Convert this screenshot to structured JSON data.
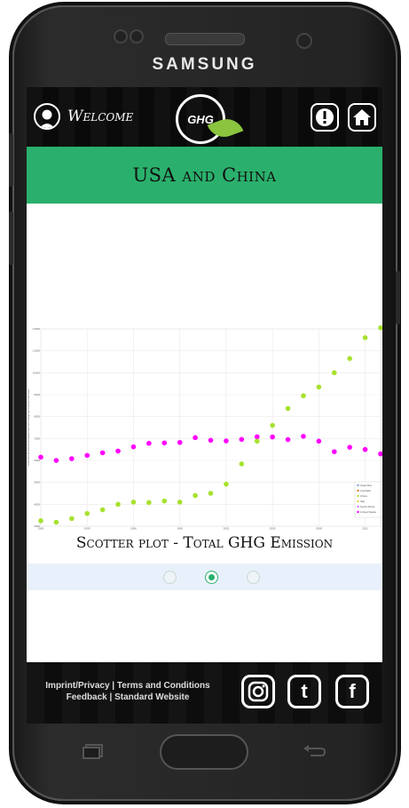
{
  "device": {
    "brand": "SAMSUNG"
  },
  "header": {
    "welcome_label": "Welcome",
    "logo_text": "GHG"
  },
  "page": {
    "title": "USA and China"
  },
  "chart_caption": "Scotter plot  -  Total GHG Emission",
  "pager": {
    "count": 3,
    "active_index": 1
  },
  "footer": {
    "links_line1": "Imprint/Privacy | Terms and Conditions",
    "links_line2": "Feedback | Standard Website",
    "social": [
      "instagram",
      "tumblr",
      "facebook"
    ],
    "social_letters": {
      "tumblr": "t",
      "facebook": "f"
    }
  },
  "colors": {
    "accent": "#2ab06c",
    "usa": "#ff00ff",
    "china": "#a6e22e"
  },
  "chart_data": {
    "type": "scatter",
    "title": "Total GHG Emission",
    "ylabel": "Total GHG Emissions Excluding Land-Use Change and Forestry (MtCO2e)",
    "xlabel": "",
    "x_ticks": [
      "1990",
      "1993",
      "1996",
      "1999",
      "2002",
      "2005",
      "2008",
      "2011"
    ],
    "xlim": [
      1990,
      2012
    ],
    "ylim": [
      3000,
      12000
    ],
    "legend": [
      "Argentina",
      "Australia",
      "China",
      "Italy",
      "South Africa",
      "United States"
    ],
    "legend_position": "bottom-right",
    "series": [
      {
        "name": "United States",
        "x": [
          1990,
          1991,
          1992,
          1993,
          1994,
          1995,
          1996,
          1997,
          1998,
          1999,
          2000,
          2001,
          2002,
          2003,
          2004,
          2005,
          2006,
          2007,
          2008,
          2009,
          2010,
          2011,
          2012
        ],
        "y": [
          6150,
          6000,
          6080,
          6230,
          6350,
          6430,
          6620,
          6780,
          6800,
          6820,
          7040,
          6920,
          6890,
          6960,
          7080,
          7070,
          6950,
          7100,
          6880,
          6400,
          6600,
          6500,
          6300
        ]
      },
      {
        "name": "China",
        "x": [
          1990,
          1991,
          1992,
          1993,
          1994,
          1995,
          1996,
          1997,
          1998,
          1999,
          2000,
          2001,
          2002,
          2003,
          2004,
          2005,
          2006,
          2007,
          2008,
          2009,
          2010,
          2011,
          2012
        ],
        "y": [
          3250,
          3180,
          3350,
          3580,
          3750,
          4000,
          4100,
          4080,
          4150,
          4100,
          4400,
          4500,
          4920,
          5840,
          6880,
          7600,
          8370,
          8950,
          9350,
          10000,
          10650,
          11600,
          12050
        ]
      }
    ]
  }
}
